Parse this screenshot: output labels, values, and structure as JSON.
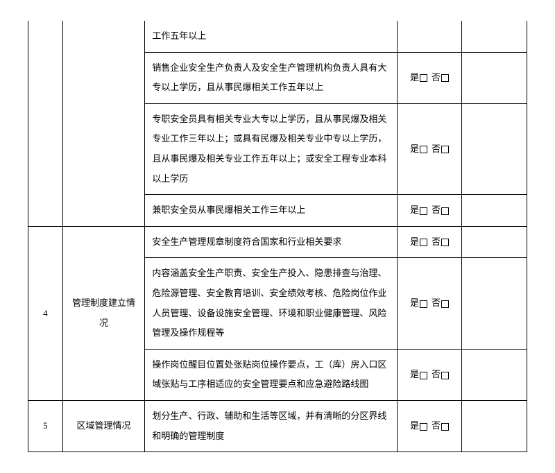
{
  "check": {
    "yes": "是",
    "no": "否"
  },
  "rows": [
    {
      "idx": "",
      "cat": "",
      "desc": "工作五年以上",
      "hasCheck": false,
      "closeTop": true
    },
    {
      "idx": "",
      "cat": "",
      "desc": "销售企业安全生产负责人及安全生产管理机构负责人具有大专以上学历，且从事民爆相关工作五年以上",
      "hasCheck": true
    },
    {
      "idx": "",
      "cat": "",
      "desc": "专职安全员具有相关专业大专以上学历，且从事民爆及相关专业工作三年以上；或具有民爆及相关专业中专以上学历，且从事民爆及相关专业工作五年以上；或安全工程专业本科以上学历",
      "hasCheck": true
    },
    {
      "idx": "",
      "cat": "",
      "desc": "兼职安全员从事民爆相关工作三年以上",
      "hasCheck": true
    },
    {
      "idx": "4",
      "cat": "管理制度建立情况",
      "catRowspan": 3,
      "desc": "安全生产管理规章制度符合国家和行业相关要求",
      "hasCheck": true
    },
    {
      "desc": "内容涵盖安全生产职责、安全生产投入、隐患排查与治理、危险源管理、安全教育培训、安全绩效考核、危险岗位作业人员管理、设备设施安全管理、环境和职业健康管理、风险管理及操作规程等",
      "hasCheck": true
    },
    {
      "desc": "操作岗位醒目位置处张贴岗位操作要点，工（库）房入口区域张贴与工序相适应的安全管理要点和应急避险路线图",
      "hasCheck": true
    },
    {
      "idx": "5",
      "cat": "区域管理情况",
      "catRowspan": 1,
      "desc": "划分生产、行政、辅助和生活等区域，并有清晰的分区界线和明确的管理制度",
      "hasCheck": true
    }
  ]
}
